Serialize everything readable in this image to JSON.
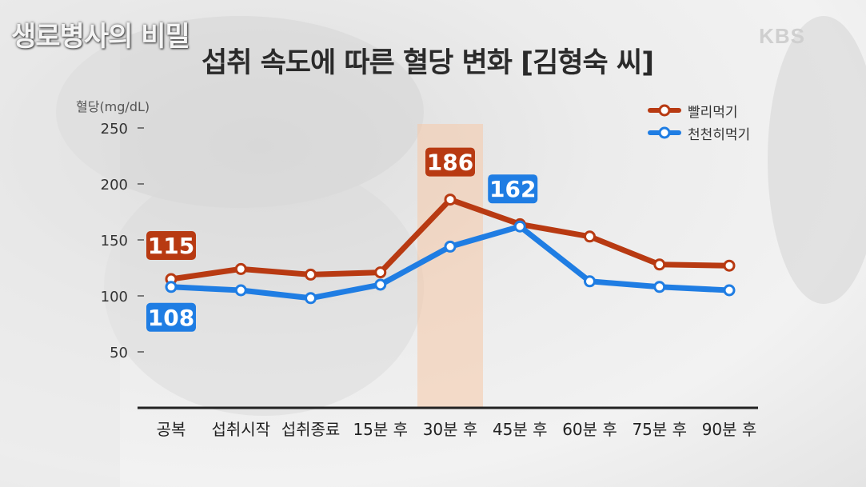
{
  "show_logo": "생로병사의 비밀",
  "broadcaster": "KBS",
  "colors": {
    "fast": "#b83a12",
    "slow": "#1f7de3",
    "highlight": "#f6c9a8"
  },
  "legend": [
    {
      "label": "빨리먹기",
      "color": "#b83a12"
    },
    {
      "label": "천천히먹기",
      "color": "#1f7de3"
    }
  ],
  "chart_data": {
    "type": "line",
    "title": "섭취 속도에 따른 혈당 변화 [김형숙 씨]",
    "ylabel": "혈당(mg/dL)",
    "xlabel": "",
    "categories": [
      "공복",
      "섭취시작",
      "섭취종료",
      "15분 후",
      "30분 후",
      "45분 후",
      "60분 후",
      "75분 후",
      "90분 후"
    ],
    "ylim": [
      50,
      250
    ],
    "yticks": [
      "250",
      "200",
      "150",
      "100",
      "50"
    ],
    "grid": false,
    "legend_position": "top-right",
    "highlight_category": "30분 후",
    "series": [
      {
        "name": "빨리먹기",
        "values": [
          115,
          124,
          119,
          121,
          186,
          164,
          153,
          128,
          127
        ]
      },
      {
        "name": "천천히먹기",
        "values": [
          108,
          105,
          98,
          110,
          144,
          162,
          113,
          108,
          105
        ]
      }
    ],
    "annotations": [
      {
        "series": 0,
        "index": 0,
        "text": "115"
      },
      {
        "series": 1,
        "index": 0,
        "text": "108"
      },
      {
        "series": 0,
        "index": 4,
        "text": "186"
      },
      {
        "series": 1,
        "index": 5,
        "text": "162"
      }
    ]
  }
}
